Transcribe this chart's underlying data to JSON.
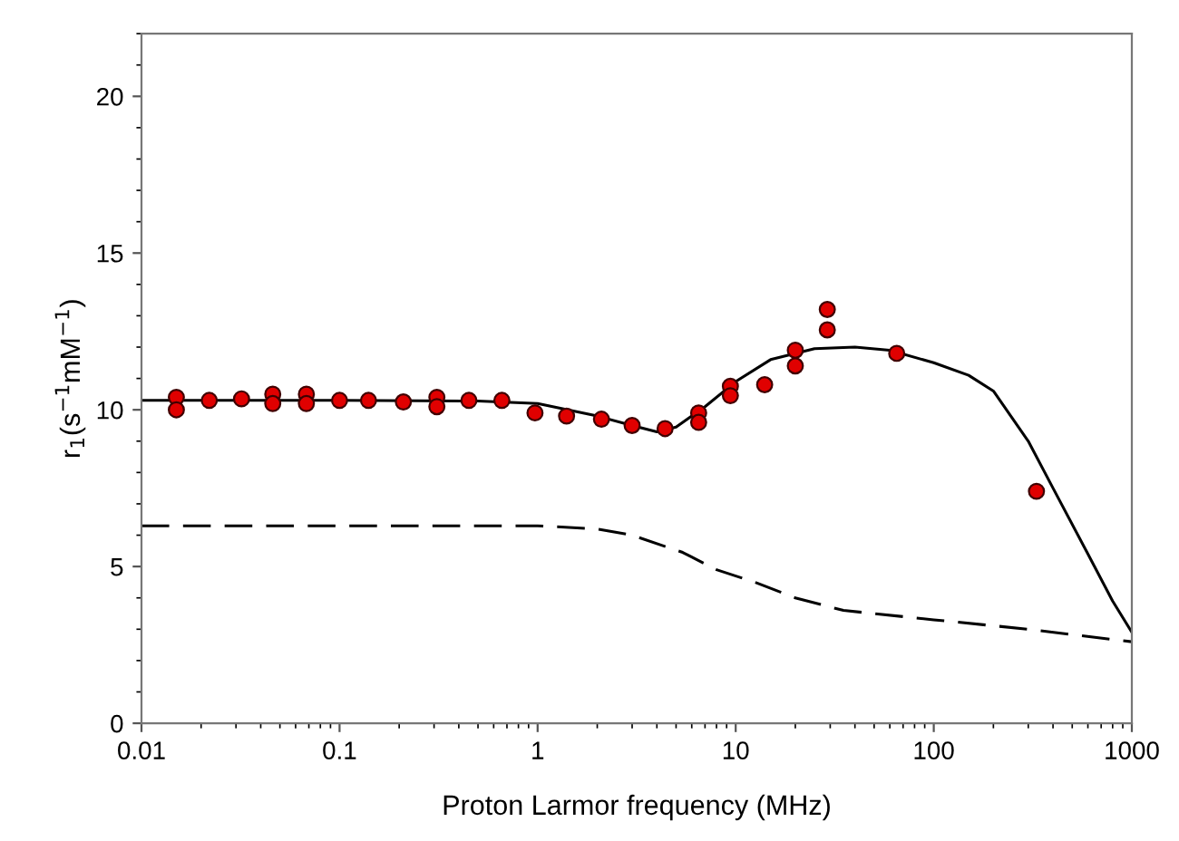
{
  "chart_data": {
    "type": "scatter",
    "xlabel": "Proton Larmor frequency (MHz)",
    "ylabel": "r$_{1}$(s$^{−1}$mM$^{−1}$)",
    "log": "x",
    "xlim": [
      0.01,
      1000
    ],
    "xticks": [
      {
        "value": 0.01,
        "label": "0.01"
      },
      {
        "value": 0.1,
        "label": "0.1"
      },
      1,
      10,
      100,
      1000
    ],
    "ylim": [
      0,
      22
    ],
    "yticks": [
      0,
      5,
      10,
      15,
      20
    ],
    "grid": false,
    "legend": false,
    "series": [
      {
        "color": "#e00000",
        "marker": "circle",
        "x": [
          0.015,
          0.015,
          0.022,
          0.032,
          0.046,
          0.046,
          0.068,
          0.068,
          0.1,
          0.14,
          0.21,
          0.31,
          0.31,
          0.45,
          0.66,
          0.97,
          1.4,
          2.1,
          3.0,
          4.4,
          6.5,
          6.5,
          9.4,
          9.4,
          14,
          20,
          20,
          29,
          29,
          65,
          330
        ],
        "values": [
          10.4,
          10.0,
          10.3,
          10.35,
          10.5,
          10.2,
          10.5,
          10.2,
          10.3,
          10.3,
          10.25,
          10.4,
          10.1,
          10.3,
          10.3,
          9.9,
          9.8,
          9.7,
          9.5,
          9.4,
          9.9,
          9.6,
          10.75,
          10.45,
          10.8,
          11.9,
          11.4,
          13.2,
          12.55,
          11.8,
          7.4
        ]
      },
      {
        "type": "line",
        "color": "#000000",
        "line_style": "solid",
        "marker": "none",
        "x": [
          0.01,
          0.1,
          0.5,
          1,
          2,
          3,
          4,
          5,
          7,
          10,
          15,
          25,
          40,
          60,
          100,
          150,
          200,
          300,
          400,
          600,
          800,
          1000
        ],
        "values": [
          10.3,
          10.3,
          10.28,
          10.2,
          9.8,
          9.5,
          9.3,
          9.45,
          10.1,
          10.9,
          11.6,
          11.95,
          12.0,
          11.9,
          11.5,
          11.1,
          10.6,
          9.0,
          7.5,
          5.4,
          3.9,
          2.9
        ]
      },
      {
        "type": "line",
        "color": "#000000",
        "line_style": "dashed",
        "marker": "none",
        "x": [
          0.01,
          0.1,
          1,
          2,
          3,
          5.4,
          8,
          12.5,
          20,
          35,
          100,
          300,
          1000
        ],
        "values": [
          6.3,
          6.3,
          6.3,
          6.2,
          6.0,
          5.45,
          4.9,
          4.5,
          4.0,
          3.6,
          3.3,
          3.0,
          2.6
        ]
      }
    ]
  }
}
